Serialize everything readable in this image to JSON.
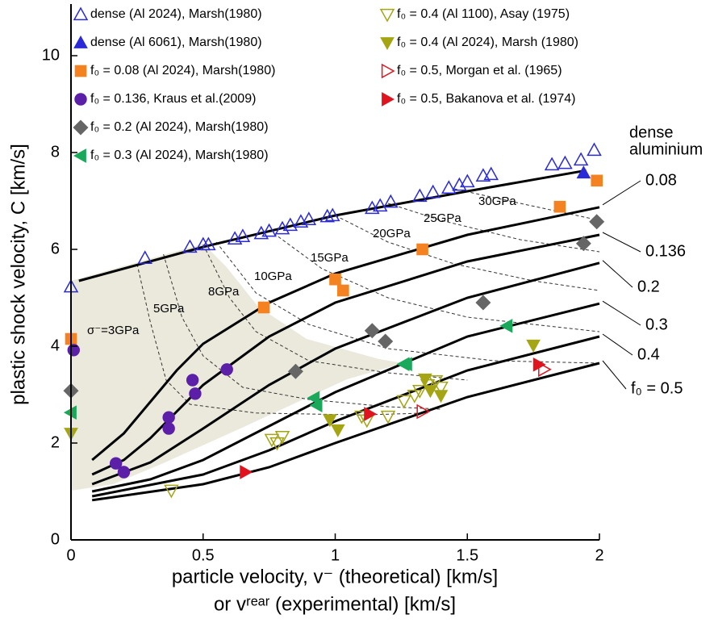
{
  "chart_data": {
    "type": "scatter",
    "x_label": [
      "particle velocity, v⁻ (theoretical) [km/s]",
      "or vʳᵉᵃʳ (experimental) [km/s]"
    ],
    "y_label": "plastic shock velocity, C [km/s]",
    "xlim": [
      0,
      2
    ],
    "ylim": [
      0,
      11
    ],
    "xticks": [
      0,
      0.5,
      1,
      1.5,
      2
    ],
    "yticks": [
      0,
      2,
      4,
      6,
      8,
      10
    ],
    "series": [
      {
        "name": "dense (Al 2024), Marsh(1980)",
        "color": "#2a2ad8",
        "marker": "triangle-up",
        "filled": false,
        "x": [
          0,
          0.28,
          0.45,
          0.5,
          0.52,
          0.62,
          0.65,
          0.72,
          0.75,
          0.8,
          0.83,
          0.87,
          0.9,
          0.97,
          0.99,
          1.14,
          1.17,
          1.21,
          1.32,
          1.37,
          1.43,
          1.47,
          1.5,
          1.56,
          1.59,
          1.82,
          1.87,
          1.93,
          1.98
        ],
        "y": [
          5.23,
          5.82,
          6.05,
          6.1,
          6.1,
          6.22,
          6.27,
          6.33,
          6.38,
          6.43,
          6.5,
          6.57,
          6.62,
          6.68,
          6.7,
          6.85,
          6.9,
          6.98,
          7.1,
          7.18,
          7.27,
          7.33,
          7.4,
          7.52,
          7.55,
          7.75,
          7.78,
          7.85,
          8.05
        ]
      },
      {
        "name": "dense (Al 6061), Marsh(1980)",
        "color": "#2a2ad8",
        "marker": "triangle-up",
        "filled": true,
        "x": [
          1.94
        ],
        "y": [
          7.58
        ]
      },
      {
        "name": "f₀ = 0.08 (Al 2024), Marsh(1980)",
        "color": "#f58220",
        "marker": "square",
        "filled": true,
        "x": [
          0,
          0.73,
          1.0,
          1.03,
          1.33,
          1.85,
          1.99
        ],
        "y": [
          4.15,
          4.8,
          5.38,
          5.15,
          6.0,
          6.88,
          7.42
        ]
      },
      {
        "name": "f₀ = 0.136, Kraus et al.(2009)",
        "color": "#5b1fa8",
        "marker": "circle",
        "filled": true,
        "x": [
          0.01,
          0.17,
          0.2,
          0.37,
          0.37,
          0.46,
          0.47,
          0.59
        ],
        "y": [
          3.92,
          1.58,
          1.4,
          2.3,
          2.53,
          3.3,
          3.02,
          3.52
        ]
      },
      {
        "name": "f₀ = 0.2 (Al 2024), Marsh(1980)",
        "color": "#666666",
        "marker": "diamond",
        "filled": true,
        "x": [
          0,
          0.85,
          1.14,
          1.19,
          1.56,
          1.94,
          1.99
        ],
        "y": [
          3.08,
          3.48,
          4.32,
          4.1,
          4.9,
          6.12,
          6.57
        ]
      },
      {
        "name": "f₀ = 0.3 (Al 2024), Marsh(1980)",
        "color": "#1aa85a",
        "marker": "triangle-left",
        "filled": true,
        "x": [
          0,
          0.92,
          0.93,
          1.26,
          1.27,
          1.65
        ],
        "y": [
          2.63,
          2.93,
          2.78,
          3.63,
          3.63,
          4.42
        ]
      },
      {
        "name": "f₀ = 0.4 (Al 1100), Asay (1975)",
        "color": "#a5a514",
        "marker": "triangle-down",
        "filled": false,
        "x": [
          0.38,
          0.76,
          0.78,
          0.8,
          1.1,
          1.12,
          1.2,
          1.26,
          1.3,
          1.32,
          1.35,
          1.38,
          1.4
        ],
        "y": [
          1.02,
          2.07,
          2.0,
          2.13,
          2.55,
          2.47,
          2.55,
          2.87,
          2.98,
          3.08,
          3.2,
          3.28,
          3.15
        ]
      },
      {
        "name": "f₀ = 0.4 (Al 2024), Marsh (1980)",
        "color": "#a5a514",
        "marker": "triangle-down",
        "filled": true,
        "x": [
          0,
          0.98,
          1.01,
          1.34,
          1.36,
          1.4,
          1.75
        ],
        "y": [
          2.2,
          2.48,
          2.27,
          3.32,
          3.08,
          2.98,
          4.02
        ]
      },
      {
        "name": "f₀ = 0.5, Morgan et al. (1965)",
        "color": "#e0141e",
        "marker": "triangle-right",
        "filled": false,
        "x": [
          1.33,
          1.79
        ],
        "y": [
          2.65,
          3.52
        ]
      },
      {
        "name": "f₀ = 0.5, Bakanova et al. (1974)",
        "color": "#e0141e",
        "marker": "triangle-right",
        "filled": true,
        "x": [
          0.66,
          1.13,
          1.77
        ],
        "y": [
          1.4,
          2.6,
          3.62
        ]
      }
    ],
    "curves": [
      {
        "label": [
          "dense",
          "aluminium"
        ],
        "x": [
          0.03,
          0.5,
          1,
          1.5,
          1.95
        ],
        "y": [
          5.35,
          6.05,
          6.7,
          7.2,
          7.63
        ]
      },
      {
        "label": "0.08",
        "x": [
          0.08,
          0.2,
          0.3,
          0.4,
          0.5,
          0.75,
          1,
          1.5,
          2
        ],
        "y": [
          1.65,
          2.2,
          2.85,
          3.5,
          4.05,
          4.9,
          5.5,
          6.3,
          6.87
        ]
      },
      {
        "label": "0.136",
        "x": [
          0.08,
          0.2,
          0.3,
          0.4,
          0.5,
          0.75,
          1,
          1.5,
          2
        ],
        "y": [
          1.35,
          1.65,
          2.1,
          2.65,
          3.2,
          4.2,
          4.9,
          5.75,
          6.3
        ]
      },
      {
        "label": "0.2",
        "x": [
          0.08,
          0.3,
          0.5,
          0.75,
          1,
          1.5,
          2
        ],
        "y": [
          1.15,
          1.6,
          2.3,
          3.2,
          3.95,
          5.0,
          5.72
        ]
      },
      {
        "label": "0.3",
        "x": [
          0.08,
          0.3,
          0.5,
          0.75,
          1,
          1.5,
          2
        ],
        "y": [
          1.0,
          1.25,
          1.65,
          2.35,
          3.05,
          4.2,
          4.88
        ]
      },
      {
        "label": "0.4",
        "x": [
          0.08,
          0.5,
          0.75,
          1,
          1.5,
          2
        ],
        "y": [
          0.9,
          1.35,
          1.85,
          2.45,
          3.5,
          4.2
        ]
      },
      {
        "label": "f₀ = 0.5",
        "x": [
          0.08,
          0.5,
          0.75,
          1,
          1.5,
          2
        ],
        "y": [
          0.82,
          1.15,
          1.5,
          2.0,
          2.95,
          3.65
        ]
      }
    ],
    "isobars": [
      {
        "label": "σ⁻=3GPa",
        "x": [
          0.25,
          0.3,
          0.36,
          0.45,
          0.7,
          1.1,
          1.35
        ],
        "y": [
          5.7,
          4.5,
          3.3,
          2.8,
          2.62,
          2.58,
          2.62
        ]
      },
      {
        "label": "5GPa",
        "x": [
          0.35,
          0.42,
          0.5,
          0.65,
          0.9,
          1.2,
          1.4
        ],
        "y": [
          5.9,
          4.6,
          3.8,
          3.15,
          2.9,
          2.75,
          2.7
        ]
      },
      {
        "label": "8GPa",
        "x": [
          0.5,
          0.6,
          0.7,
          0.9,
          1.2,
          1.5
        ],
        "y": [
          6.1,
          5.0,
          4.3,
          3.7,
          3.45,
          3.3
        ]
      },
      {
        "label": "10GPa",
        "x": [
          0.55,
          0.7,
          0.9,
          1.2,
          1.6,
          2
        ],
        "y": [
          6.15,
          5.1,
          4.45,
          3.95,
          3.7,
          3.65
        ]
      },
      {
        "label": "15GPa",
        "x": [
          0.75,
          0.95,
          1.2,
          1.5,
          2
        ],
        "y": [
          6.4,
          5.6,
          5.0,
          4.6,
          4.3
        ]
      },
      {
        "label": "20GPa",
        "x": [
          1.0,
          1.2,
          1.45,
          1.75,
          2
        ],
        "y": [
          6.7,
          6.15,
          5.7,
          5.35,
          5.15
        ]
      },
      {
        "label": "25GPa",
        "x": [
          1.2,
          1.4,
          1.7,
          2
        ],
        "y": [
          6.95,
          6.6,
          6.2,
          5.95
        ]
      },
      {
        "label": "30GPa",
        "x": [
          1.45,
          1.7,
          2
        ],
        "y": [
          7.25,
          6.95,
          6.6
        ]
      }
    ]
  }
}
